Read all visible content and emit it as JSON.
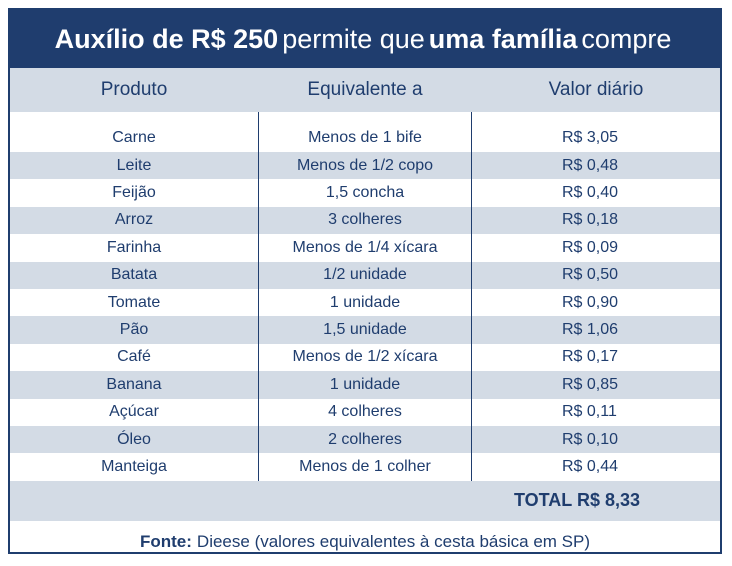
{
  "title": {
    "part1": "Auxílio de R$ 250",
    "part2": "permite que",
    "part3": "uma família",
    "part4": "compre"
  },
  "chart_data": {
    "type": "table",
    "columns": [
      "Produto",
      "Equivalente a",
      "Valor diário"
    ],
    "rows": [
      {
        "produto": "Carne",
        "equivalente": "Menos de 1 bife",
        "valor": "R$ 3,05"
      },
      {
        "produto": "Leite",
        "equivalente": "Menos de 1/2 copo",
        "valor": "R$ 0,48"
      },
      {
        "produto": "Feijão",
        "equivalente": "1,5 concha",
        "valor": "R$ 0,40"
      },
      {
        "produto": "Arroz",
        "equivalente": "3 colheres",
        "valor": "R$ 0,18"
      },
      {
        "produto": "Farinha",
        "equivalente": "Menos de 1/4 xícara",
        "valor": "R$ 0,09"
      },
      {
        "produto": "Batata",
        "equivalente": "1/2 unidade",
        "valor": "R$ 0,50"
      },
      {
        "produto": "Tomate",
        "equivalente": "1 unidade",
        "valor": "R$ 0,90"
      },
      {
        "produto": "Pão",
        "equivalente": "1,5 unidade",
        "valor": "R$ 1,06"
      },
      {
        "produto": "Café",
        "equivalente": "Menos de 1/2 xícara",
        "valor": "R$ 0,17"
      },
      {
        "produto": "Banana",
        "equivalente": "1 unidade",
        "valor": "R$ 0,85"
      },
      {
        "produto": "Açúcar",
        "equivalente": "4 colheres",
        "valor": "R$ 0,11"
      },
      {
        "produto": "Óleo",
        "equivalente": "2 colheres",
        "valor": "R$ 0,10"
      },
      {
        "produto": "Manteiga",
        "equivalente": "Menos de 1 colher",
        "valor": "R$ 0,44"
      }
    ],
    "total": "TOTAL R$ 8,33"
  },
  "source": {
    "label": "Fonte:",
    "text": "Dieese (valores equivalentes à cesta básica em SP)"
  },
  "colors": {
    "navy": "#1f3d6e",
    "shade": "#d3dbe5"
  }
}
